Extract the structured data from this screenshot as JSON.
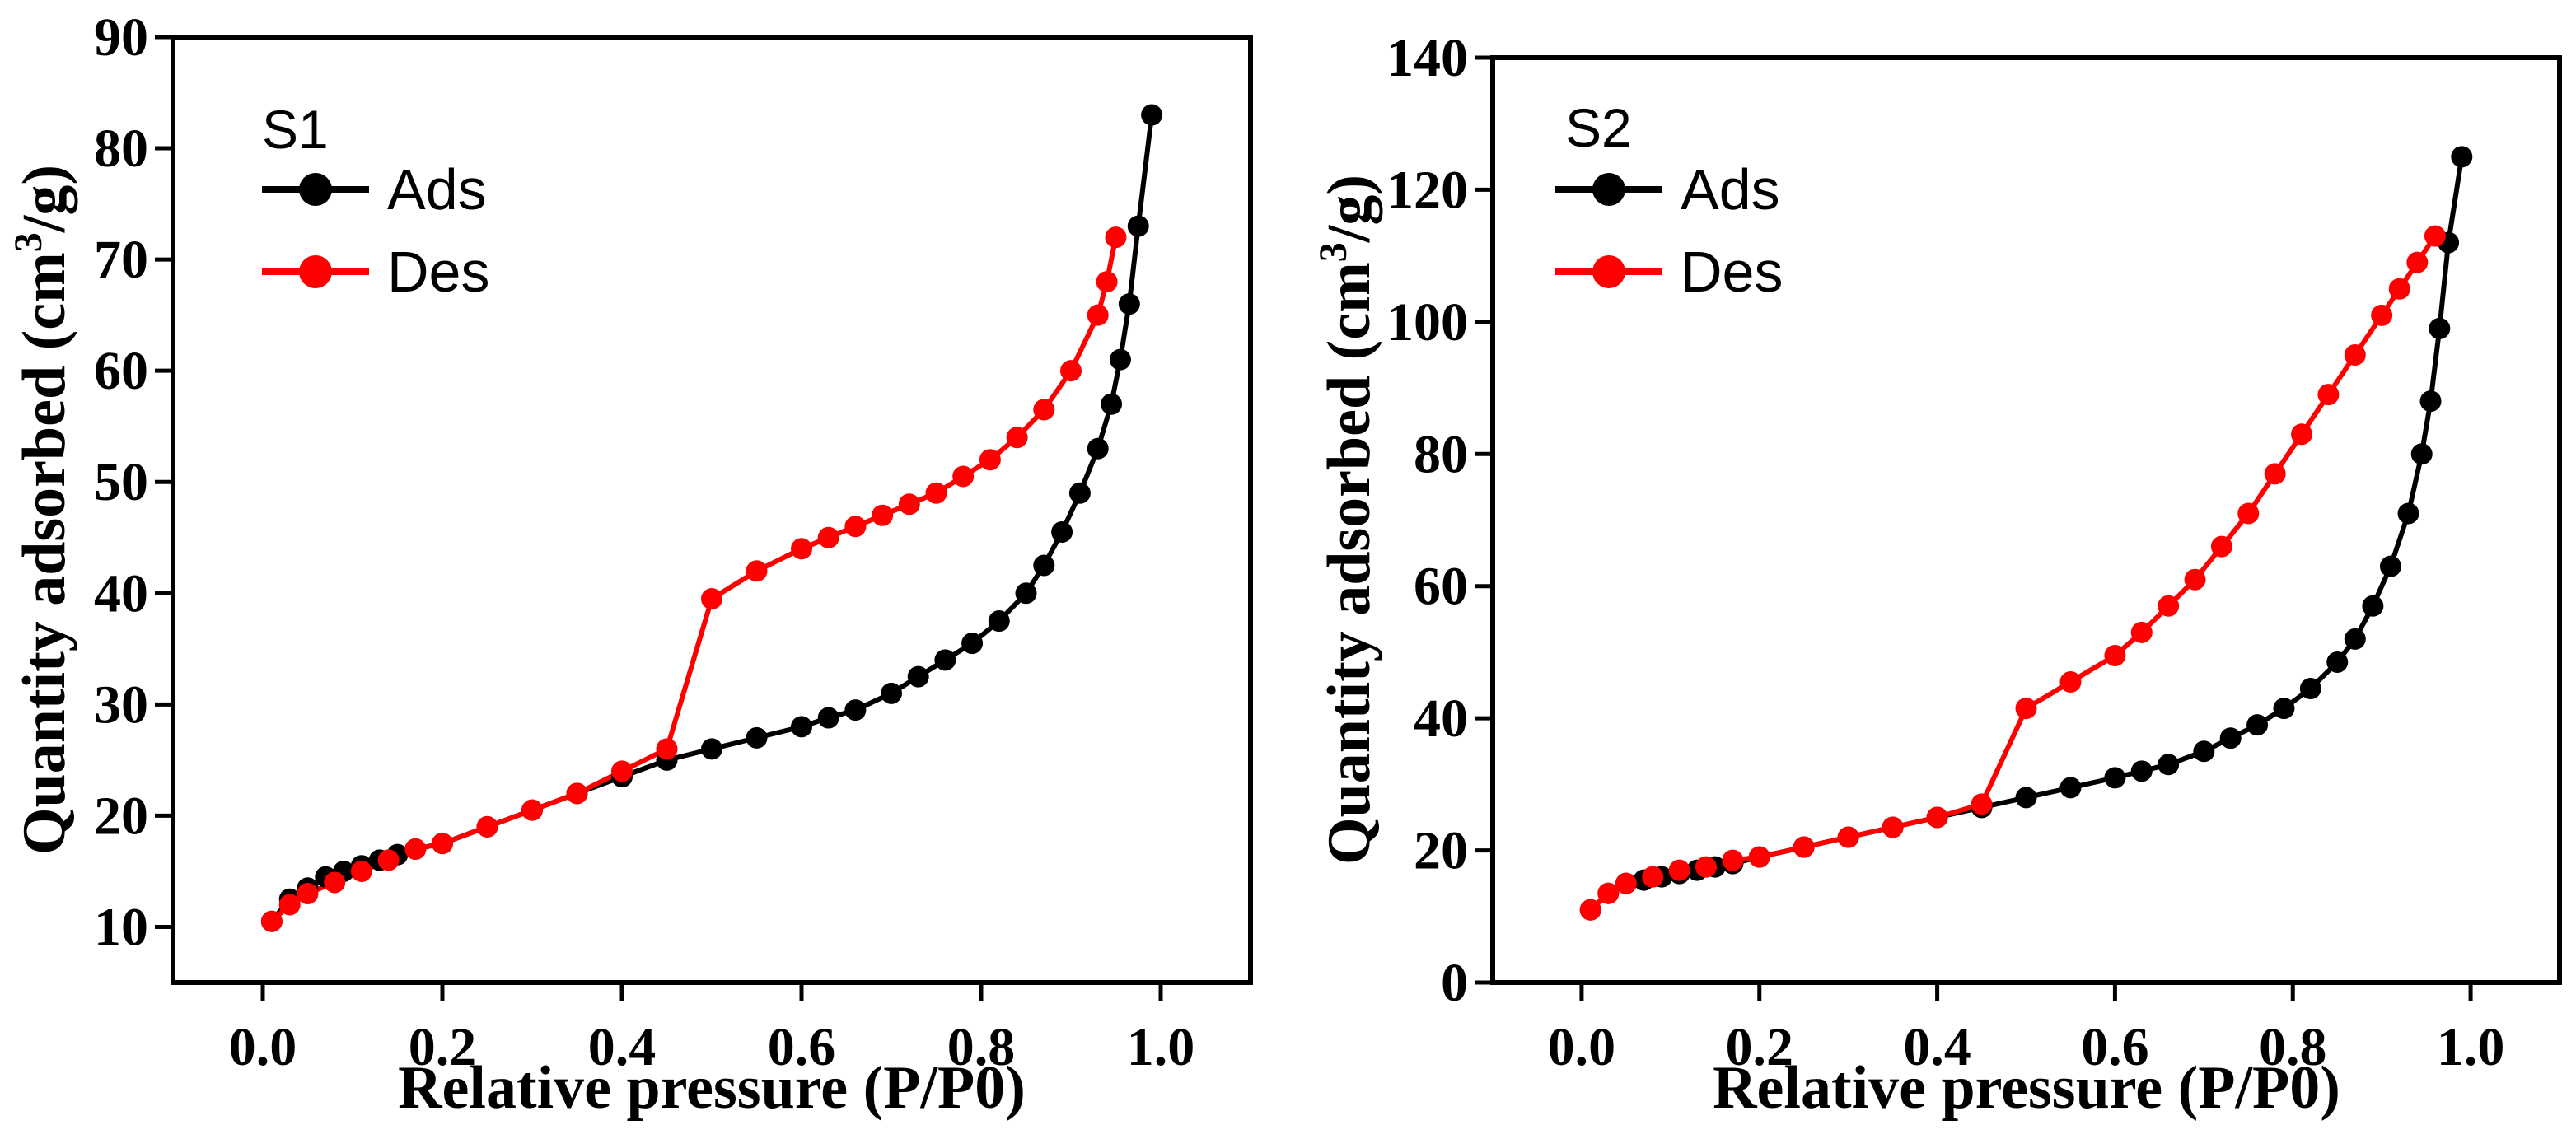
{
  "chart_data": [
    {
      "type": "line",
      "title": "S1",
      "xlabel": "Relative pressure (P/P0)",
      "ylabel": "Quantity adsorbed (cm3/g)",
      "ylabel_parts": {
        "pre": "Quantity adsorbed (cm",
        "sup": "3",
        "post": "/g)"
      },
      "xlim": [
        -0.1,
        1.1
      ],
      "ylim": [
        5,
        90
      ],
      "xticks": [
        0.0,
        0.2,
        0.4,
        0.6,
        0.8,
        1.0
      ],
      "xtick_labels": [
        "0.0",
        "0.2",
        "0.4",
        "0.6",
        "0.8",
        "1.0"
      ],
      "yticks": [
        10,
        20,
        30,
        40,
        50,
        60,
        70,
        80,
        90
      ],
      "ytick_labels": [
        "10",
        "20",
        "30",
        "40",
        "50",
        "60",
        "70",
        "80",
        "90"
      ],
      "legend_position": "top-left",
      "series": [
        {
          "name": "Ads",
          "color": "#000000",
          "x": [
            0.01,
            0.03,
            0.05,
            0.07,
            0.09,
            0.11,
            0.13,
            0.15,
            0.17,
            0.2,
            0.25,
            0.3,
            0.35,
            0.4,
            0.45,
            0.5,
            0.55,
            0.6,
            0.63,
            0.66,
            0.7,
            0.73,
            0.76,
            0.79,
            0.82,
            0.85,
            0.87,
            0.89,
            0.91,
            0.93,
            0.945,
            0.955,
            0.965,
            0.975,
            0.99
          ],
          "y": [
            10.5,
            12.5,
            13.5,
            14.5,
            15,
            15.5,
            16,
            16.5,
            17,
            17.5,
            19,
            20.5,
            22,
            23.5,
            25,
            26,
            27,
            28,
            28.8,
            29.5,
            31,
            32.5,
            34,
            35.5,
            37.5,
            40,
            42.5,
            45.5,
            49,
            53,
            57,
            61,
            66,
            73,
            83
          ]
        },
        {
          "name": "Des",
          "color": "#ff0000",
          "x": [
            0.95,
            0.94,
            0.93,
            0.9,
            0.87,
            0.84,
            0.81,
            0.78,
            0.75,
            0.72,
            0.69,
            0.66,
            0.63,
            0.6,
            0.55,
            0.5,
            0.45,
            0.4,
            0.35,
            0.3,
            0.25,
            0.2,
            0.17,
            0.14,
            0.11,
            0.08,
            0.05,
            0.03,
            0.01
          ],
          "y": [
            72,
            68,
            65,
            60,
            56.5,
            54,
            52,
            50.5,
            49,
            48,
            47,
            46,
            45,
            44,
            42,
            39.5,
            26,
            24,
            22,
            20.5,
            19,
            17.5,
            17,
            16,
            15,
            14,
            13,
            12,
            10.5
          ]
        }
      ]
    },
    {
      "type": "line",
      "title": "S2",
      "xlabel": "Relative pressure (P/P0)",
      "ylabel": "Quantity adsorbed (cm3/g)",
      "ylabel_parts": {
        "pre": "Quantity adsorbed (cm",
        "sup": "3",
        "post": "/g)"
      },
      "xlim": [
        -0.1,
        1.1
      ],
      "ylim": [
        0,
        140
      ],
      "xticks": [
        0.0,
        0.2,
        0.4,
        0.6,
        0.8,
        1.0
      ],
      "xtick_labels": [
        "0.0",
        "0.2",
        "0.4",
        "0.6",
        "0.8",
        "1.0"
      ],
      "yticks": [
        0,
        20,
        40,
        60,
        80,
        100,
        120,
        140
      ],
      "ytick_labels": [
        "0",
        "20",
        "40",
        "60",
        "80",
        "100",
        "120",
        "140"
      ],
      "legend_position": "top-left",
      "series": [
        {
          "name": "Ads",
          "color": "#000000",
          "x": [
            0.01,
            0.03,
            0.05,
            0.07,
            0.09,
            0.11,
            0.13,
            0.15,
            0.17,
            0.2,
            0.25,
            0.3,
            0.35,
            0.4,
            0.45,
            0.5,
            0.55,
            0.6,
            0.63,
            0.66,
            0.7,
            0.73,
            0.76,
            0.79,
            0.82,
            0.85,
            0.87,
            0.89,
            0.91,
            0.93,
            0.945,
            0.955,
            0.965,
            0.975,
            0.99
          ],
          "y": [
            11,
            13.5,
            15,
            15.5,
            16,
            16.5,
            17,
            17.5,
            18,
            19,
            20.5,
            22,
            23.5,
            25,
            26.5,
            28,
            29.5,
            31,
            32,
            33,
            35,
            37,
            39,
            41.5,
            44.5,
            48.5,
            52,
            57,
            63,
            71,
            80,
            88,
            99,
            112,
            125
          ]
        },
        {
          "name": "Des",
          "color": "#ff0000",
          "x": [
            0.96,
            0.94,
            0.92,
            0.9,
            0.87,
            0.84,
            0.81,
            0.78,
            0.75,
            0.72,
            0.69,
            0.66,
            0.63,
            0.6,
            0.55,
            0.5,
            0.45,
            0.4,
            0.35,
            0.3,
            0.25,
            0.2,
            0.17,
            0.14,
            0.11,
            0.08,
            0.05,
            0.03,
            0.01
          ],
          "y": [
            113,
            109,
            105,
            101,
            95,
            89,
            83,
            77,
            71,
            66,
            61,
            57,
            53,
            49.5,
            45.5,
            41.5,
            27,
            25,
            23.5,
            22,
            20.5,
            19,
            18.5,
            17.5,
            17,
            16,
            15,
            13.5,
            11
          ]
        }
      ]
    }
  ]
}
